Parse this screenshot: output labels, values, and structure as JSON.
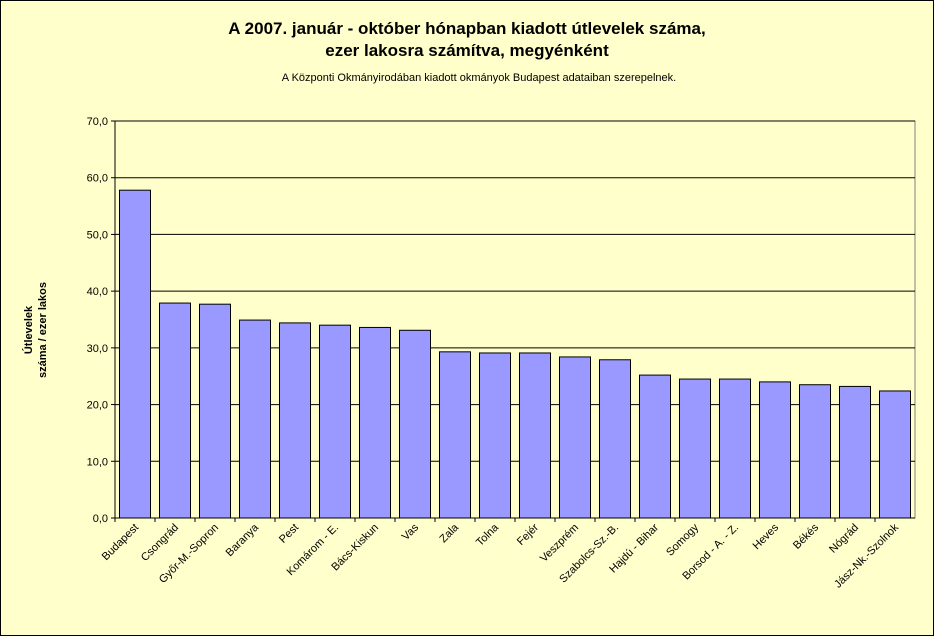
{
  "chart_data": {
    "type": "bar",
    "title_lines": [
      "A 2007. január - október hónapban kiadott útlevelek száma,",
      "ezer lakosra számítva, megyénként"
    ],
    "subtitle": "A Központi Okmányirodában kiadott okmányok Budapest adataiban szerepelnek.",
    "ylabel_lines": [
      "Útlevelek",
      "száma / ezer lakos"
    ],
    "xlabel": "",
    "ylim": [
      0,
      70
    ],
    "yticks": [
      "0,0",
      "10,0",
      "20,0",
      "30,0",
      "40,0",
      "50,0",
      "60,0",
      "70,0"
    ],
    "grid": true,
    "categories": [
      "Budapest",
      "Csongrád",
      "Győr-M.-Sopron",
      "Baranya",
      "Pest",
      "Komárom - E.",
      "Bács-Kiskun",
      "Vas",
      "Zala",
      "Tolna",
      "Fejér",
      "Veszprém",
      "Szabolcs-Sz.-B.",
      "Hajdú - Bihar",
      "Somogy",
      "Borsod - A. - Z.",
      "Heves",
      "Békés",
      "Nógrád",
      "Jász-Nk.-Szolnok"
    ],
    "values": [
      57.8,
      37.9,
      37.7,
      34.9,
      34.4,
      34.0,
      33.6,
      33.1,
      29.3,
      29.1,
      29.1,
      28.4,
      27.9,
      25.2,
      24.5,
      24.5,
      24.0,
      23.5,
      23.2,
      22.4
    ],
    "colors": {
      "bar": "#9999ff",
      "plot_bg": "#ffffcc",
      "grid": "#000000"
    }
  }
}
